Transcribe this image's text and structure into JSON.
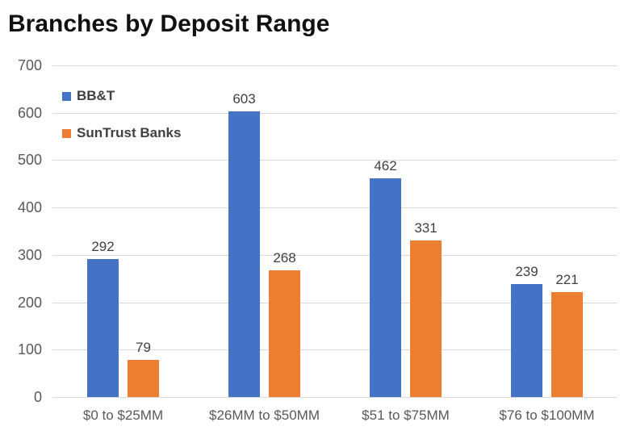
{
  "title": "Branches by Deposit Range",
  "colors": {
    "bbt_blue": "#4472C4",
    "suntrust_orange": "#ED7D31",
    "gridline": "#D9D9D9",
    "axis_text": "#595959",
    "data_label_text": "#404040",
    "legend_text": "#404040",
    "title_text": "#111111",
    "background": "#FFFFFF"
  },
  "legend": {
    "position": "upper-left-inside",
    "items": [
      {
        "label": "BB&T",
        "color": "#4472C4"
      },
      {
        "label": "SunTrust Banks",
        "color": "#ED7D31"
      }
    ]
  },
  "chart_data": {
    "type": "bar",
    "title": "Branches by Deposit Range",
    "categories": [
      "$0 to $25MM",
      "$26MM to $50MM",
      "$51 to $75MM",
      "$76 to $100MM"
    ],
    "series": [
      {
        "name": "BB&T",
        "color": "#4472C4",
        "values": [
          292,
          603,
          462,
          239
        ]
      },
      {
        "name": "SunTrust Banks",
        "color": "#ED7D31",
        "values": [
          79,
          268,
          331,
          221
        ]
      }
    ],
    "xlabel": "",
    "ylabel": "",
    "ylim": [
      0,
      700
    ],
    "yticks": [
      0,
      100,
      200,
      300,
      400,
      500,
      600,
      700
    ],
    "grid": true,
    "data_labels": true,
    "legend_position": "upper-left-inside"
  }
}
